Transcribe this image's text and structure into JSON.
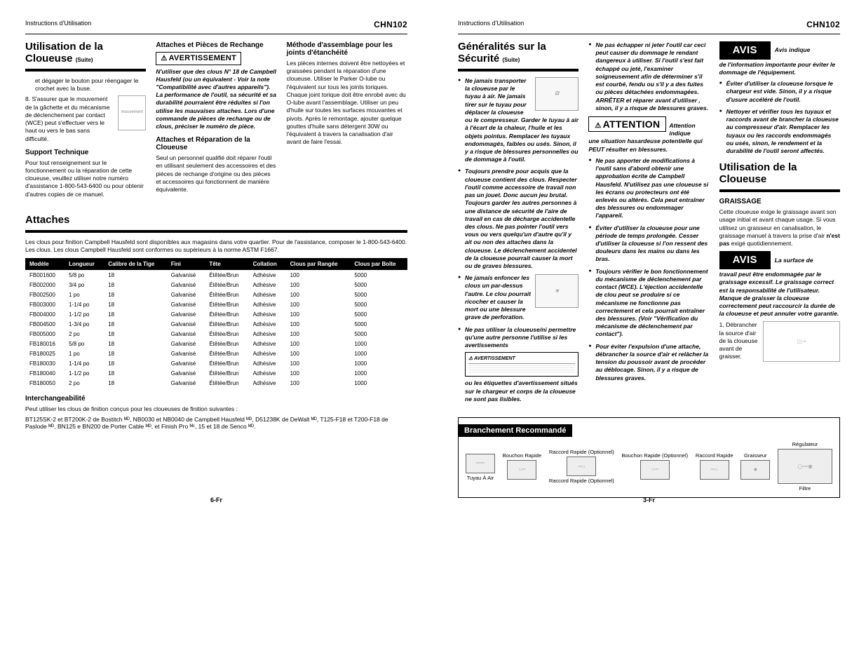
{
  "header": {
    "instructions": "Instructions d'Utilisation",
    "model": "CHN102"
  },
  "left": {
    "h2a": "Utilisation de la",
    "h2b": "Cloueuse",
    "suite": "(Suite)",
    "step7": "et dégager le bouton pour réengager le crochet avec la buse.",
    "step8_num": "8.",
    "step8": "S'assurer que le mouvement de la gâchette et du mécanisme de déclenchement par contact (WCE) peut s'effectuer vers le haut ou vers le bas sans difficulté.",
    "step8_annot": "mouvement",
    "support_h": "Support Technique",
    "support_p": "Pour tout renseignement sur le fonctionnement ou la réparation de cette cloueuse, veuillez utiliser notre numéro d'assistance 1-800-543-6400 ou pour obtenir d'autres copies de ce manuel.",
    "mid_h1": "Attaches et Pièces de Rechange",
    "warn_label": "AVERTISSEMENT",
    "mid_p1": "N'utiliser que des clous N° 18 de Campbell Hausfeld (ou un équivalent - Voir la note \"Compatibilité avec d'autres appareils\"). La performance de l'outil, sa sécurité et sa durabilité pourraient être réduites si l'on utilise les mauvaises attaches. Lors d'une commande de pièces de rechange ou de clous, préciser le numéro de pièce.",
    "mid_h2": "Attaches et Réparation de la Cloueuse",
    "mid_p2": "Seul un personnel qualifié doit réparer l'outil en utilisant seulement des accessoires et des pièces de rechange d'origine ou des pièces et accessoires qui fonctionnent de manière équivalente.",
    "right_h": "Méthode d'assemblage pour les joints d'étanchéité",
    "right_p": "Les pièces internes doivent être nettoyées et graissées pendant la réparation d'une cloueuse. Utiliser le Parker O-lube ou l'équivalent sur tous les joints toriques. Chaque joint torique doit être enrobé avec du O-lube avant l'assemblage. Utiliser un peu d'huile sur toutes les surfaces mouvantes et pivots. Après le remontage, ajouter quelque gouttes d'huile sans détergent 30W ou l'équivalent à travers la canalisation d'air avant de faire l'essai.",
    "attaches_h": "Attaches",
    "attaches_p": "Les clous pour finition Campbell Hausfeld sont disponibles aux magasins dans votre quartier. Pour de l'assistance, composer le 1-800-543-6400. Les clous. Les clous Campbell Hausfeld sont conformes ou supérieurs à la norme ASTM F1667.",
    "cols": [
      "Modèle",
      "Longueur",
      "Calibre de la Tige",
      "Fini",
      "Tête",
      "Collation",
      "Clous par Rangée",
      "Clous par Boîte"
    ],
    "rows": [
      [
        "FB001600",
        "5/8 po",
        "18",
        "Galvanisé",
        "Étêtée/Brun",
        "Adhésive",
        "100",
        "5000"
      ],
      [
        "FB002000",
        "3/4 po",
        "18",
        "Galvanisé",
        "Étêtée/Brun",
        "Adhésive",
        "100",
        "5000"
      ],
      [
        "FB002500",
        "1 po",
        "18",
        "Galvanisé",
        "Étêtée/Brun",
        "Adhésive",
        "100",
        "5000"
      ],
      [
        "FB003000",
        "1-1/4 po",
        "18",
        "Galvanisé",
        "Étêtée/Brun",
        "Adhésive",
        "100",
        "5000"
      ],
      [
        "FB004000",
        "1-1/2 po",
        "18",
        "Galvanisé",
        "Étêtée/Brun",
        "Adhésive",
        "100",
        "5000"
      ],
      [
        "FB004500",
        "1-3/4 po",
        "18",
        "Galvanisé",
        "Étêtée/Brun",
        "Adhésive",
        "100",
        "5000"
      ],
      [
        "FB005000",
        "2 po",
        "18",
        "Galvanisé",
        "Étêtée/Brun",
        "Adhésive",
        "100",
        "5000"
      ],
      [
        "FB180016",
        "5/8 po",
        "18",
        "Galvanisé",
        "Étêtée/Brun",
        "Adhésive",
        "100",
        "1000"
      ],
      [
        "FB180025",
        "1 po",
        "18",
        "Galvanisé",
        "Étêtée/Brun",
        "Adhésive",
        "100",
        "1000"
      ],
      [
        "FB180030",
        "1-1/4 po",
        "18",
        "Galvanisé",
        "Étêtée/Brun",
        "Adhésive",
        "100",
        "1000"
      ],
      [
        "FB180040",
        "1-1/2 po",
        "18",
        "Galvanisé",
        "Étêtée/Brun",
        "Adhésive",
        "100",
        "1000"
      ],
      [
        "FB180050",
        "2 po",
        "18",
        "Galvanisé",
        "Étêtée/Brun",
        "Adhésive",
        "100",
        "1000"
      ]
    ],
    "inter_h": "Interchangeabilité",
    "inter_p1": "Peut utiliser les clous de finition conçus pour les cloueuses de finition suivantes :",
    "inter_p2": "BT125SK-2 et BT200K-2 de Bostitch ᴹᴰ, NB0030 et NB0040 de Campbell Hausfeld ᴹᴰ, D51238K de DeWalt ᴹᴰ, T125-F18 et T200-F18 de Paslode ᴹᴰ, BN125 e BN200 de Porter Cable ᴹᴰ, et Finish Pro ᴹᶜ, 15 et 18 de Senco ᴹᴰ.",
    "footer": "6-Fr"
  },
  "right": {
    "h2a": "Généralités sur la",
    "h2b": "Sécurité",
    "suite": "(Suite)",
    "b1": "Ne jamais transporter la cloueuse par le tuyau à air. Ne jamais tirer sur le tuyau pour déplacer la cloueuse ou le compresseur. Garder le tuyau à air à l'écart de la chaleur, l'huile et les objets pointus. Remplacer les tuyaux endommagés, faibles ou usés. Sinon, il y a risque de blessures personnelles ou de dommage à l'outil.",
    "b2": "Toujours prendre pour acquis que la cloueuse contient des clous. Respecter l'outil comme accessoire de travail non pas un jouet. Donc aucun jeu brutal. Toujours garder les autres personnes à une distance de sécurité de l'aire de travail en cas de décharge accidentelle des clous. Ne pas pointer l'outil vers vous ou vers quelqu'un d'autre qu'il y ait ou non des attaches dans la cloueuse. Le déclenchement accidentel de la cloueuse pourrait causer la mort ou de graves blessures.",
    "b3": "Ne jamais enfoncer les clous un par-dessus l'autre. Le clou pourrait ricocher et causer la mort ou une blessure grave de perforation.",
    "b4a": "Ne pas utiliser la cloueuse/ni permettre qu'une autre personne l'utilise si les avertissements",
    "b4b": "ou les étiquettes d'avertissement situés sur le chargeur et corps de la cloueuse ne sont pas lisibles.",
    "avert_small": "AVERTISSEMENT",
    "c1": "Ne pas échapper ni jeter l'outil car ceci peut causer du dommage le rendant dangereux à utiliser. Si l'outil s'est fait échappé ou jeté, l'examiner soigneusement afin de déterminer s'il est courbé, fendu ou s'il y a des fuites ou pièces détachées endommagées. ARRÊTER et réparer avant d'utiliser , sinon, il y a risque de blessures graves.",
    "att_label": "ATTENTION",
    "att_lead": "Attention indique",
    "att_p": "une situation hasardeuse potentielle qui PEUT résulter en blessures.",
    "c2": "Ne pas apporter de modifications à l'outil sans d'abord obtenir une approbation écrite de Campbell Hausfeld. N'utilisez pas une cloueuse si les écrans ou protecteurs ont été enlevés ou altérés. Cela peut entraîner des blessures ou endommager l'appareil.",
    "c3": "Éviter d'utiliser la cloueuse pour une période de temps prolongée. Cesser d'utiliser la cloueuse si l'on ressent des douleurs dans les mains ou dans les bras.",
    "c4": "Toujours vérifier le bon fonctionnement du mécanisme de déclenchement par contact (WCE). L'éjection accidentelle de clou peut se produire si ce mécanisme ne fonctionne pas correctement et cela pourrait entraîner des blessures. (Voir \"Vérification du mécanisme de déclenchement par contact\").",
    "c5": "Pour éviter l'expulsion d'une attache, débrancher la source d'air et relâcher la tension du poussoir avant de procéder au déblocage. Sinon, il y a risque de blessures graves.",
    "avis_label": "AVIS",
    "avis1_lead": "Avis indique",
    "avis1_p": "de l'information importante pour éviter le dommage de l'équipement.",
    "d1": "Éviter d'utiliser la cloueuse lorsque le chargeur est vide. Sinon, il y a risque d'usure accéléré de l'outil.",
    "d2": "Nettoyer et vérifier tous les tuyaux et raccords avant de brancher la cloueuse au compresseur d'air. Remplacer les tuyaux ou les raccords endommagés ou usés, sinon, le rendement et la durabilité de l'outil seront affectés.",
    "use_h2a": "Utilisation de la",
    "use_h2b": "Cloueuse",
    "grais_h": "GRAISSAGE",
    "grais_p": "Cette cloueuse exige le graissage avant son usage initial et avant chaque usage. Si vous utilisez un graisseur en canalisation, le graissage manuel à travers la prise d'air n'est pas exigé quotidiennement.",
    "grais_bold": "n'est pas",
    "avis2_lead": "La surface de",
    "avis2_p": "travail peut être endommagée par le graissage excessif. Le graissage correct est la responsabilité de l'utilisateur. Manque de graisser la cloueuse correctement peut raccourcir la durée de la cloueuse et peut annuler votre garantie.",
    "grais_step": "1.  Débrancher la source d'air de la cloueuse avant de graisser.",
    "branch_h": "Branchement Recommandé",
    "branch_labels": [
      "Tuyau À Air",
      "Bouchon Rapide",
      "Raccord Rapide (Optionnel)",
      "Bouchon Rapide (Optionnel)",
      "Raccord Rapide",
      "Graisseur",
      "Filtre",
      "Régulateur"
    ],
    "footer": "3-Fr"
  }
}
